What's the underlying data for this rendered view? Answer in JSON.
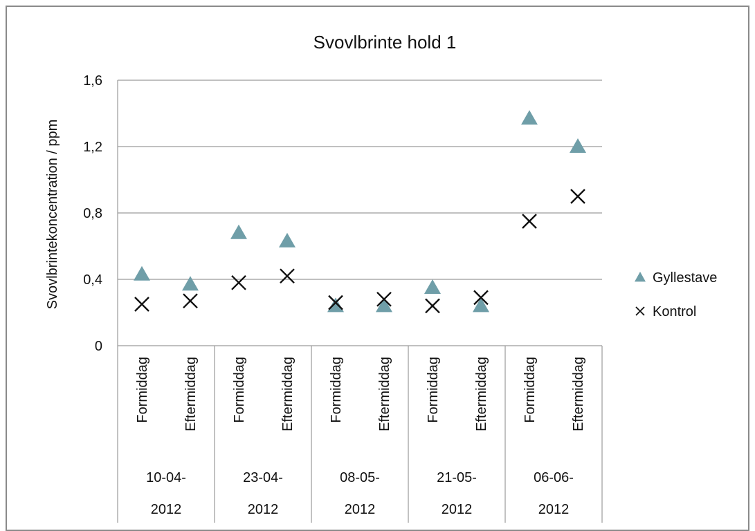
{
  "chart_data": {
    "type": "scatter",
    "title": "Svovlbrinte hold 1",
    "ylabel": "Svovlbrintekoncentration / ppm",
    "xlabel": "",
    "ylim": [
      0,
      1.6
    ],
    "yticks": [
      0,
      0.4,
      0.8,
      1.2,
      1.6
    ],
    "ytick_labels": [
      "0",
      "0,4",
      "0,8",
      "1,2",
      "1,6"
    ],
    "grid": true,
    "legend_position": "right",
    "groups": [
      {
        "date_line1": "10-04-",
        "date_line2": "2012",
        "sub": [
          "Formiddag",
          "Eftermiddag"
        ]
      },
      {
        "date_line1": "23-04-",
        "date_line2": "2012",
        "sub": [
          "Formiddag",
          "Eftermiddag"
        ]
      },
      {
        "date_line1": "08-05-",
        "date_line2": "2012",
        "sub": [
          "Formiddag",
          "Eftermiddag"
        ]
      },
      {
        "date_line1": "21-05-",
        "date_line2": "2012",
        "sub": [
          "Formiddag",
          "Eftermiddag"
        ]
      },
      {
        "date_line1": "06-06-",
        "date_line2": "2012",
        "sub": [
          "Formiddag",
          "Eftermiddag"
        ]
      }
    ],
    "series": [
      {
        "name": "Gyllestave",
        "marker": "triangle",
        "color": "#6f9ea8",
        "values": [
          0.43,
          0.37,
          0.68,
          0.63,
          0.24,
          0.24,
          0.35,
          0.24,
          1.37,
          1.2
        ]
      },
      {
        "name": "Kontrol",
        "marker": "x",
        "color": "#111111",
        "values": [
          0.25,
          0.27,
          0.38,
          0.42,
          0.26,
          0.28,
          0.24,
          0.29,
          0.75,
          0.9
        ]
      }
    ]
  }
}
